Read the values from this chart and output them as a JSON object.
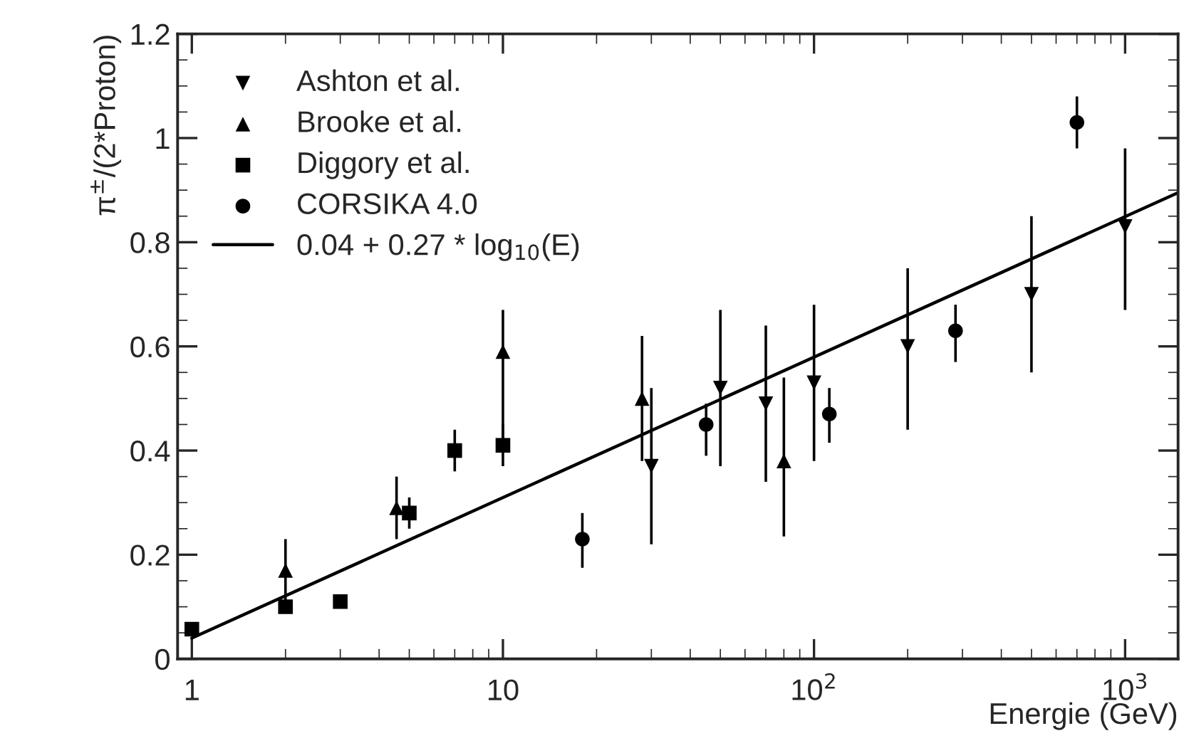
{
  "chart_data": {
    "type": "scatter",
    "xlabel": "Energie (GeV)",
    "ylabel": "π$^{±}$/(2*Proton)",
    "log": "x",
    "xlim": [
      0.9,
      1480
    ],
    "xticks": [
      1,
      10,
      {
        "value": 100,
        "label": "10$^{2}$"
      },
      {
        "value": 1000,
        "label": "10$^{3}$"
      }
    ],
    "ylim": [
      0,
      1.2
    ],
    "yticks": [
      0,
      0.2,
      0.4,
      0.6,
      0.8,
      1,
      1.2
    ],
    "grid": false,
    "legend": "top left",
    "series": [
      {
        "name": "Ashton et al.",
        "color": "#000000",
        "marker": "triangle_down",
        "x": [
          30,
          50,
          70,
          100,
          200,
          500,
          1000
        ],
        "values": [
          0.37,
          0.52,
          0.49,
          0.53,
          0.6,
          0.7,
          0.83
        ],
        "errors": [
          [
            0.22,
            0.52
          ],
          [
            0.37,
            0.67
          ],
          [
            0.34,
            0.64
          ],
          [
            0.38,
            0.68
          ],
          [
            0.44,
            0.75
          ],
          [
            0.55,
            0.85
          ],
          [
            0.67,
            0.98
          ]
        ]
      },
      {
        "name": "Brooke et al.",
        "color": "#000000",
        "marker": "triangle",
        "x": [
          2,
          4.55,
          10,
          28,
          80
        ],
        "values": [
          0.17,
          0.29,
          0.59,
          0.5,
          0.38
        ],
        "errors": [
          [
            0.11,
            0.23
          ],
          [
            0.23,
            0.35
          ],
          [
            0.4,
            0.67
          ],
          [
            0.38,
            0.62
          ],
          [
            0.235,
            0.54
          ]
        ]
      },
      {
        "name": "Diggory et al.",
        "color": "#000000",
        "marker": "square",
        "x": [
          1,
          2,
          3,
          5,
          7,
          10
        ],
        "values": [
          0.057,
          0.1,
          0.11,
          0.28,
          0.4,
          0.41
        ],
        "errors": [
          [
            0.045,
            0.07
          ],
          null,
          null,
          [
            0.25,
            0.31
          ],
          [
            0.36,
            0.44
          ],
          [
            0.37,
            0.45
          ]
        ]
      },
      {
        "name": "CORSIKA 4.0",
        "color": "#000000",
        "marker": "circle",
        "x": [
          18,
          45,
          112,
          285,
          700
        ],
        "values": [
          0.23,
          0.45,
          0.47,
          0.63,
          1.03
        ],
        "errors": [
          [
            0.175,
            0.28
          ],
          [
            0.39,
            0.49
          ],
          [
            0.415,
            0.52
          ],
          [
            0.57,
            0.68
          ],
          [
            0.98,
            1.08
          ]
        ]
      },
      {
        "name": "0.04 + 0.27 * log$_{10}$(E)",
        "type": "line",
        "color": "#000000",
        "marker": "none",
        "line_style": "solid",
        "x": [
          1,
          1480
        ],
        "values": [
          0.04,
          0.895
        ]
      }
    ]
  }
}
